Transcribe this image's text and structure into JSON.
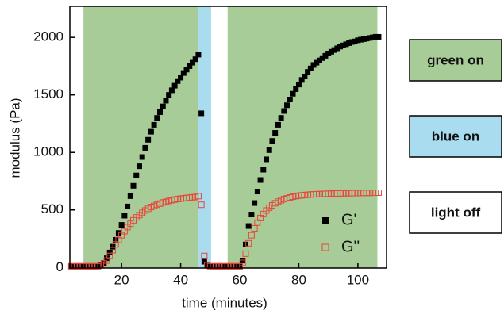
{
  "chart_data": {
    "type": "scatter",
    "x_label": "time (minutes)",
    "y_label": "modulus (Pa)",
    "xlim": [
      2.5,
      109.7
    ],
    "ylim": [
      -5,
      2270
    ],
    "xticks": [
      20,
      40,
      60,
      80,
      100
    ],
    "yticks": [
      0,
      500,
      1000,
      1500,
      2000
    ],
    "legend": "lower right",
    "regions": [
      {
        "start": 7.1,
        "end": 45.8,
        "color": "#a8cc98"
      },
      {
        "start": 45.8,
        "end": 50.3,
        "color": "#a9dcee"
      },
      {
        "start": 55.9,
        "end": 106.6,
        "color": "#a8cc98"
      }
    ],
    "light_key": [
      {
        "label": "green on",
        "color": "#a8cc98"
      },
      {
        "label": "blue on",
        "color": "#a9dcee"
      },
      {
        "label": "light off",
        "color": "#ffffff"
      }
    ],
    "x": [
      3,
      4,
      5,
      6,
      7,
      8,
      9,
      10,
      11,
      12,
      13,
      14,
      15,
      16,
      17,
      18,
      19,
      20,
      21,
      22,
      23,
      24,
      25,
      26,
      27,
      28,
      29,
      30,
      31,
      32,
      33,
      34,
      35,
      36,
      37,
      38,
      39,
      40,
      41,
      42,
      43,
      44,
      45,
      46,
      47,
      48,
      49,
      50,
      51,
      52,
      53,
      54,
      55,
      56,
      57,
      58,
      59,
      60,
      61,
      62,
      63,
      64,
      65,
      66,
      67,
      68,
      69,
      70,
      71,
      72,
      73,
      74,
      75,
      76,
      77,
      78,
      79,
      80,
      81,
      82,
      83,
      84,
      85,
      86,
      87,
      88,
      89,
      90,
      91,
      92,
      93,
      94,
      95,
      96,
      97,
      98,
      99,
      100,
      101,
      102,
      103,
      104,
      105,
      106,
      107
    ],
    "series": [
      {
        "name": "G'",
        "color": "#000000",
        "marker": "filled",
        "values": [
          10,
          10,
          10,
          10,
          10,
          10,
          10,
          10,
          10,
          10,
          20,
          40,
          80,
          130,
          180,
          240,
          300,
          370,
          450,
          530,
          620,
          710,
          800,
          880,
          960,
          1040,
          1110,
          1180,
          1240,
          1300,
          1350,
          1400,
          1450,
          1500,
          1540,
          1580,
          1620,
          1650,
          1690,
          1720,
          1750,
          1780,
          1810,
          1850,
          1340,
          50,
          15,
          10,
          10,
          10,
          10,
          10,
          10,
          10,
          10,
          10,
          10,
          10,
          60,
          200,
          360,
          460,
          560,
          660,
          760,
          850,
          940,
          1020,
          1100,
          1170,
          1240,
          1300,
          1360,
          1410,
          1460,
          1510,
          1550,
          1590,
          1630,
          1660,
          1700,
          1730,
          1760,
          1780,
          1800,
          1820,
          1840,
          1860,
          1875,
          1890,
          1905,
          1920,
          1930,
          1940,
          1950,
          1960,
          1965,
          1975,
          1980,
          1985,
          1990,
          1995,
          2000,
          2005,
          2005
        ]
      },
      {
        "name": "G''",
        "color": "#e8463c",
        "marker": "hollow",
        "values": [
          10,
          10,
          10,
          10,
          10,
          10,
          10,
          10,
          10,
          10,
          20,
          35,
          60,
          100,
          150,
          200,
          240,
          280,
          315,
          350,
          380,
          410,
          435,
          455,
          475,
          495,
          510,
          525,
          535,
          545,
          555,
          565,
          570,
          578,
          585,
          590,
          595,
          598,
          601,
          604,
          607,
          610,
          612,
          620,
          545,
          100,
          20,
          10,
          10,
          10,
          10,
          10,
          10,
          10,
          10,
          10,
          10,
          10,
          40,
          120,
          210,
          280,
          340,
          390,
          430,
          465,
          495,
          520,
          540,
          558,
          572,
          584,
          594,
          602,
          609,
          615,
          620,
          624,
          627,
          630,
          632,
          634,
          636,
          637,
          638,
          639,
          640,
          641,
          642,
          643,
          643,
          644,
          644,
          645,
          645,
          646,
          646,
          647,
          647,
          648,
          648,
          649,
          649,
          650,
          650
        ]
      }
    ]
  }
}
